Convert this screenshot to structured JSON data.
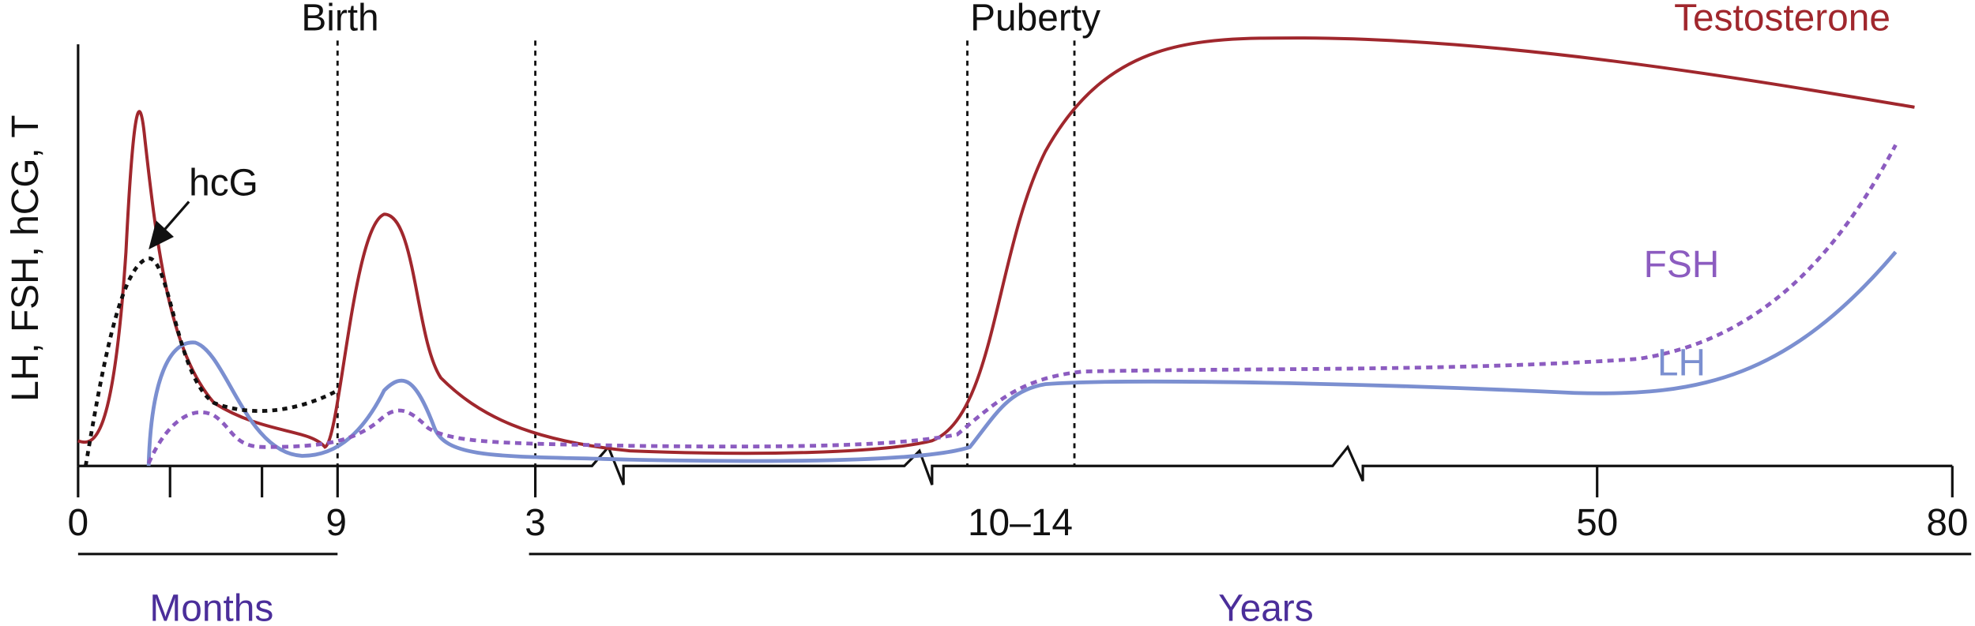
{
  "events": {
    "birth": "Birth",
    "puberty": "Puberty"
  },
  "curves": {
    "testosterone": "Testosterone",
    "hcg": "hcG",
    "fsh": "FSH",
    "lh": "LH"
  },
  "y_axis_label": "LH, FSH, hCG, T",
  "x_ticks": [
    "0",
    "9",
    "3",
    "10–14",
    "50",
    "80"
  ],
  "periods": {
    "months": "Months",
    "years": "Years"
  }
}
